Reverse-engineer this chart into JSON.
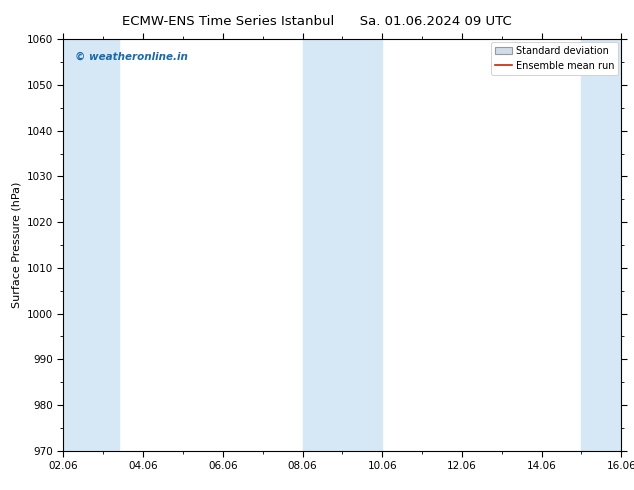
{
  "title_left": "ECMW-ENS Time Series Istanbul",
  "title_right": "Sa. 01.06.2024 09 UTC",
  "ylabel": "Surface Pressure (hPa)",
  "ylim": [
    970,
    1060
  ],
  "yticks": [
    970,
    980,
    990,
    1000,
    1010,
    1020,
    1030,
    1040,
    1050,
    1060
  ],
  "xlim": [
    0,
    14
  ],
  "xtick_labels": [
    "02.06",
    "04.06",
    "06.06",
    "08.06",
    "10.06",
    "12.06",
    "14.06",
    "16.06"
  ],
  "xtick_positions": [
    0,
    2,
    4,
    6,
    8,
    10,
    12,
    14
  ],
  "background_color": "#ffffff",
  "plot_bg_color": "#ffffff",
  "shaded_bands": [
    {
      "xmin": 0.0,
      "xmax": 1.4,
      "color": "#d6e8f5"
    },
    {
      "xmin": 6.0,
      "xmax": 7.0,
      "color": "#d6e8f5"
    },
    {
      "xmin": 7.0,
      "xmax": 8.0,
      "color": "#d6e8f5"
    },
    {
      "xmin": 13.0,
      "xmax": 14.0,
      "color": "#d6e8f5"
    }
  ],
  "watermark": "© weatheronline.in",
  "watermark_color": "#1a6aaa",
  "legend_std_color": "#c0c0c0",
  "legend_mean_color": "#cc2200",
  "title_fontsize": 9.5,
  "ylabel_fontsize": 8,
  "tick_fontsize": 7.5,
  "watermark_fontsize": 7.5,
  "legend_fontsize": 7
}
